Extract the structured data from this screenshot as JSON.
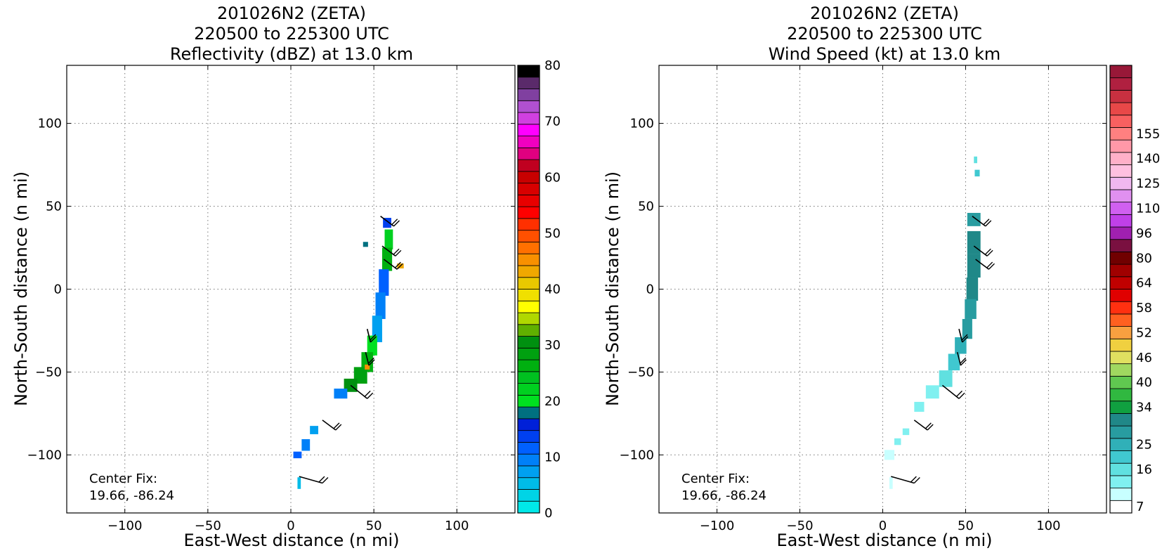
{
  "chart_data": [
    {
      "type": "heatmap",
      "title": [
        "201026N2 (ZETA)",
        "220500 to 225300 UTC",
        "Reflectivity (dBZ) at 13.0 km"
      ],
      "xlabel": "East-West distance (n mi)",
      "ylabel": "North-South distance (n mi)",
      "xlim": [
        -135,
        135
      ],
      "ylim": [
        -135,
        135
      ],
      "xticks": [
        -100,
        -50,
        0,
        50,
        100
      ],
      "yticks": [
        -100,
        -50,
        0,
        50,
        100
      ],
      "xtick_labels": [
        "−100",
        "−50",
        "0",
        "50",
        "100"
      ],
      "ytick_labels": [
        "−100",
        "−50",
        "0",
        "50",
        "100"
      ],
      "grid": true,
      "annotation": [
        "Center Fix:",
        "19.66, -86.24"
      ],
      "colorbar": {
        "min": 0,
        "max": 80,
        "tick_values": [
          0,
          10,
          20,
          30,
          40,
          50,
          60,
          70,
          80
        ],
        "tick_labels": [
          "0",
          "10",
          "20",
          "30",
          "40",
          "50",
          "60",
          "70",
          "80"
        ],
        "colors": [
          "#00e8e8",
          "#00d4e6",
          "#00bce8",
          "#00a0f0",
          "#0080f8",
          "#0060ff",
          "#0040f0",
          "#0020d8",
          "#007080",
          "#00e020",
          "#00d020",
          "#00c020",
          "#00b010",
          "#00a010",
          "#009010",
          "#60b000",
          "#b0d800",
          "#ffff00",
          "#f0e000",
          "#e8c800",
          "#f0a800",
          "#f89000",
          "#ff7000",
          "#ff5000",
          "#ff3000",
          "#ff0000",
          "#e80000",
          "#d80000",
          "#c80000",
          "#c00020",
          "#e00080",
          "#f000c0",
          "#ff00ff",
          "#d040e0",
          "#b050d0",
          "#8040a0",
          "#5a2a6a",
          "#000000"
        ]
      },
      "echoes": [
        {
          "x": 58,
          "y": 40,
          "w": 5,
          "h": 6,
          "value": 6
        },
        {
          "x": 59,
          "y": 30,
          "w": 5,
          "h": 12,
          "value": 10
        },
        {
          "x": 58,
          "y": 18,
          "w": 6,
          "h": 14,
          "value": 12
        },
        {
          "x": 56,
          "y": 4,
          "w": 6,
          "h": 16,
          "value": 5
        },
        {
          "x": 54,
          "y": -10,
          "w": 6,
          "h": 16,
          "value": 4
        },
        {
          "x": 52,
          "y": -24,
          "w": 6,
          "h": 16,
          "value": 3
        },
        {
          "x": 49,
          "y": -34,
          "w": 6,
          "h": 12,
          "value": 9
        },
        {
          "x": 46,
          "y": -44,
          "w": 7,
          "h": 12,
          "value": 12
        },
        {
          "x": 42,
          "y": -52,
          "w": 8,
          "h": 10,
          "value": 13
        },
        {
          "x": 36,
          "y": -58,
          "w": 8,
          "h": 8,
          "value": 14
        },
        {
          "x": 30,
          "y": -63,
          "w": 8,
          "h": 6,
          "value": 4
        },
        {
          "x": 46,
          "y": -47,
          "w": 3,
          "h": 3,
          "value": 21
        },
        {
          "x": 66,
          "y": 14,
          "w": 4,
          "h": 3,
          "value": 20
        },
        {
          "x": 45,
          "y": 27,
          "w": 3,
          "h": 3,
          "value": 8
        },
        {
          "x": 14,
          "y": -85,
          "w": 5,
          "h": 5,
          "value": 3
        },
        {
          "x": 9,
          "y": -94,
          "w": 5,
          "h": 7,
          "value": 4
        },
        {
          "x": 4,
          "y": -100,
          "w": 5,
          "h": 4,
          "value": 5
        },
        {
          "x": 5,
          "y": -117,
          "w": 2,
          "h": 7,
          "value": 2
        }
      ],
      "wind_barbs": [
        {
          "x": 62,
          "y": 38,
          "dx": -8,
          "dy": 6
        },
        {
          "x": 63,
          "y": 20,
          "dx": -8,
          "dy": 6
        },
        {
          "x": 64,
          "y": 12,
          "dx": -8,
          "dy": 6
        },
        {
          "x": 48,
          "y": -32,
          "dx": -2,
          "dy": 8
        },
        {
          "x": 47,
          "y": -46,
          "dx": -2,
          "dy": 8
        },
        {
          "x": 46,
          "y": -66,
          "dx": -10,
          "dy": 8
        },
        {
          "x": 27,
          "y": -85,
          "dx": -8,
          "dy": 6
        },
        {
          "x": 19,
          "y": -117,
          "dx": -14,
          "dy": 4
        }
      ]
    },
    {
      "type": "heatmap",
      "title": [
        "201026N2 (ZETA)",
        "220500 to 225300 UTC",
        "Wind Speed (kt) at 13.0 km"
      ],
      "xlabel": "East-West distance (n mi)",
      "ylabel": "North-South distance (n mi)",
      "xlim": [
        -135,
        135
      ],
      "ylim": [
        -135,
        135
      ],
      "xticks": [
        -100,
        -50,
        0,
        50,
        100
      ],
      "yticks": [
        -100,
        -50,
        0,
        50,
        100
      ],
      "xtick_labels": [
        "−100",
        "−50",
        "0",
        "50",
        "100"
      ],
      "ytick_labels": [
        "−100",
        "−50",
        "0",
        "50",
        "100"
      ],
      "grid": true,
      "annotation": [
        "Center Fix:",
        "19.66, -86.24"
      ],
      "colorbar": {
        "tick_labels": [
          "7",
          "16",
          "25",
          "34",
          "40",
          "46",
          "52",
          "58",
          "64",
          "80",
          "96",
          "110",
          "125",
          "140",
          "155"
        ],
        "tick_bins": [
          0,
          3,
          5,
          8,
          10,
          12,
          14,
          16,
          18,
          20,
          22,
          24,
          26,
          28,
          30
        ],
        "colors": [
          "#ffffff",
          "#c8ffff",
          "#80f0f0",
          "#60e0e0",
          "#40c8d0",
          "#30b0b8",
          "#289ca0",
          "#208888",
          "#10a040",
          "#30b840",
          "#60c850",
          "#a0d860",
          "#e0e060",
          "#f0d040",
          "#f8a040",
          "#ff6020",
          "#ff3010",
          "#e00000",
          "#c00000",
          "#a00000",
          "#700000",
          "#7a1040",
          "#a020b0",
          "#c040e8",
          "#d060f0",
          "#e090f0",
          "#f0b8f0",
          "#ffc0e0",
          "#ffb0c8",
          "#ff98a8",
          "#ff8080",
          "#f86060",
          "#e84848",
          "#c83040",
          "#b02040",
          "#981838"
        ]
      },
      "echoes": [
        {
          "x": 56,
          "y": 78,
          "w": 2,
          "h": 4,
          "value": 3
        },
        {
          "x": 57,
          "y": 70,
          "w": 3,
          "h": 4,
          "value": 4
        },
        {
          "x": 55,
          "y": 42,
          "w": 8,
          "h": 8,
          "value": 6
        },
        {
          "x": 55,
          "y": 28,
          "w": 8,
          "h": 14,
          "value": 7
        },
        {
          "x": 55,
          "y": 14,
          "w": 8,
          "h": 14,
          "value": 7
        },
        {
          "x": 54,
          "y": 0,
          "w": 7,
          "h": 14,
          "value": 7
        },
        {
          "x": 53,
          "y": -12,
          "w": 7,
          "h": 12,
          "value": 6
        },
        {
          "x": 51,
          "y": -24,
          "w": 6,
          "h": 12,
          "value": 6
        },
        {
          "x": 47,
          "y": -34,
          "w": 7,
          "h": 10,
          "value": 5
        },
        {
          "x": 43,
          "y": -44,
          "w": 7,
          "h": 10,
          "value": 4
        },
        {
          "x": 38,
          "y": -54,
          "w": 8,
          "h": 10,
          "value": 3
        },
        {
          "x": 30,
          "y": -62,
          "w": 8,
          "h": 8,
          "value": 2
        },
        {
          "x": 22,
          "y": -71,
          "w": 6,
          "h": 6,
          "value": 2
        },
        {
          "x": 14,
          "y": -86,
          "w": 4,
          "h": 4,
          "value": 2
        },
        {
          "x": 9,
          "y": -92,
          "w": 4,
          "h": 4,
          "value": 2
        },
        {
          "x": 4,
          "y": -100,
          "w": 6,
          "h": 6,
          "value": 1
        },
        {
          "x": 5,
          "y": -117,
          "w": 2,
          "h": 7,
          "value": 1
        }
      ],
      "wind_barbs": [
        {
          "x": 62,
          "y": 38,
          "dx": -8,
          "dy": 6
        },
        {
          "x": 63,
          "y": 20,
          "dx": -8,
          "dy": 6
        },
        {
          "x": 64,
          "y": 12,
          "dx": -8,
          "dy": 6
        },
        {
          "x": 48,
          "y": -32,
          "dx": -2,
          "dy": 8
        },
        {
          "x": 47,
          "y": -46,
          "dx": -2,
          "dy": 8
        },
        {
          "x": 46,
          "y": -66,
          "dx": -10,
          "dy": 8
        },
        {
          "x": 27,
          "y": -85,
          "dx": -8,
          "dy": 6
        },
        {
          "x": 19,
          "y": -117,
          "dx": -14,
          "dy": 4
        }
      ]
    }
  ]
}
